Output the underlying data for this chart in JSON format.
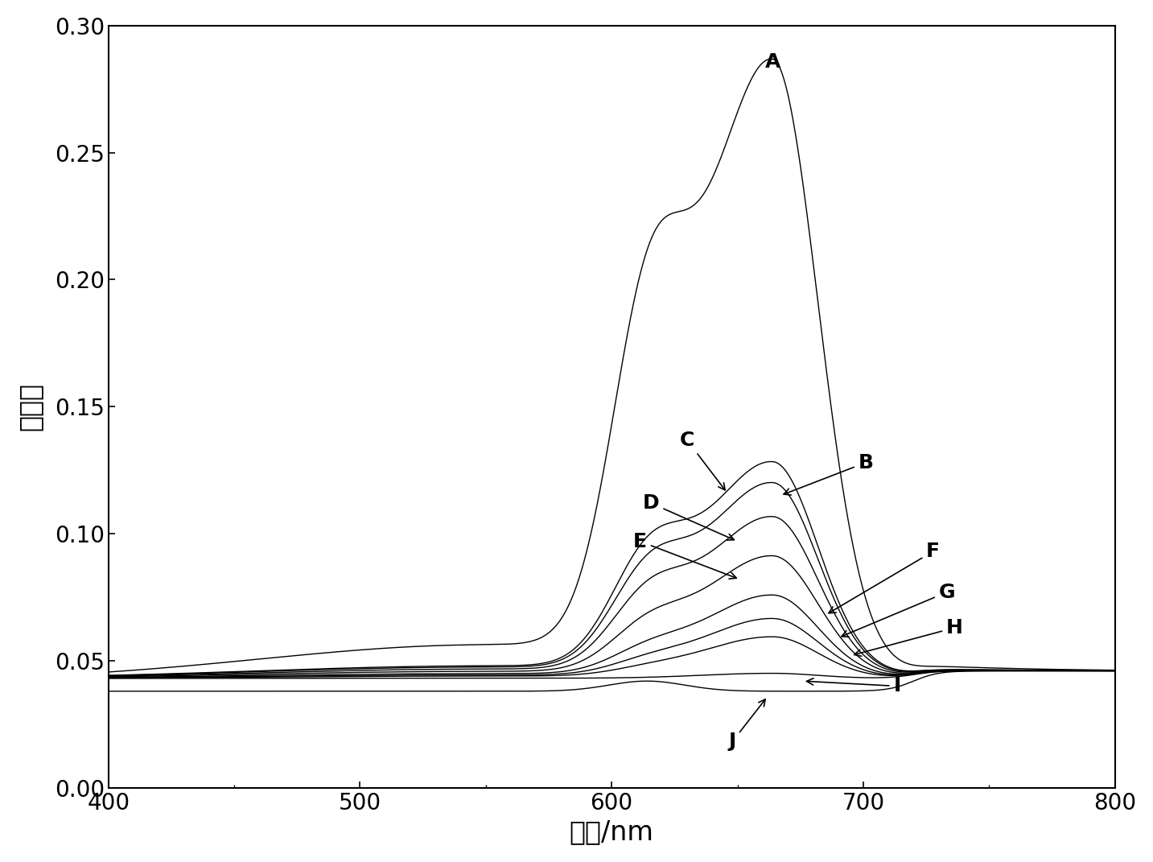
{
  "xlabel": "波长/nm",
  "ylabel": "吸光度",
  "xlim": [
    400,
    800
  ],
  "ylim": [
    0.0,
    0.3
  ],
  "yticks": [
    0.0,
    0.05,
    0.1,
    0.15,
    0.2,
    0.25,
    0.3
  ],
  "xticks": [
    400,
    500,
    600,
    700,
    800
  ],
  "background_color": "#ffffff",
  "line_color": "#000000",
  "curves": {
    "A": {
      "peak": 0.28,
      "shoulder": 0.152,
      "baseline": 0.042,
      "baseline_after": 0.046
    },
    "B": {
      "peak": 0.118,
      "shoulder": 0.073,
      "baseline": 0.043,
      "baseline_after": 0.046
    },
    "C": {
      "peak": 0.126,
      "shoulder": 0.078,
      "baseline": 0.043,
      "baseline_after": 0.046
    },
    "D": {
      "peak": 0.105,
      "shoulder": 0.066,
      "baseline": 0.043,
      "baseline_after": 0.046
    },
    "E": {
      "peak": 0.09,
      "shoulder": 0.057,
      "baseline": 0.043,
      "baseline_after": 0.046
    },
    "F": {
      "peak": 0.075,
      "shoulder": 0.05,
      "baseline": 0.043,
      "baseline_after": 0.046
    },
    "G": {
      "peak": 0.066,
      "shoulder": 0.047,
      "baseline": 0.043,
      "baseline_after": 0.046
    },
    "H": {
      "peak": 0.059,
      "shoulder": 0.045,
      "baseline": 0.043,
      "baseline_after": 0.046
    },
    "I": {
      "peak": 0.045,
      "shoulder": 0.043,
      "baseline": 0.043,
      "baseline_after": 0.046
    },
    "J": {
      "peak": 0.038,
      "shoulder": 0.042,
      "baseline": 0.038,
      "baseline_after": 0.046
    }
  },
  "peak_wavelength": 664,
  "shoulder_wavelength": 614,
  "curve_order": [
    "A",
    "B",
    "C",
    "D",
    "E",
    "F",
    "G",
    "H",
    "I",
    "J"
  ]
}
